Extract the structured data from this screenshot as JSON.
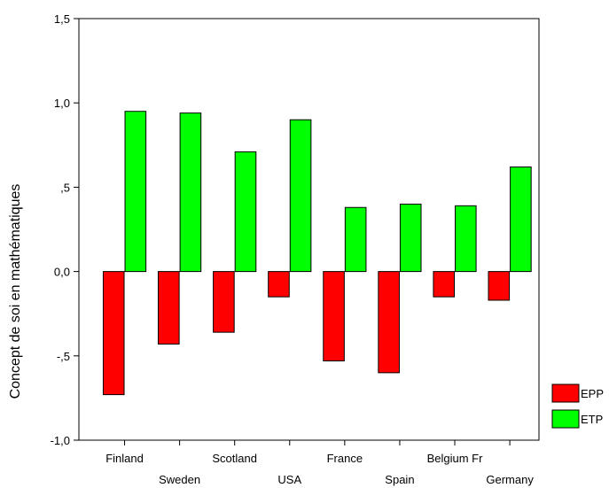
{
  "chart_data": {
    "type": "bar",
    "title": "",
    "xlabel": "",
    "ylabel": "Concept de soi en mathématiques",
    "ylim": [
      -1.0,
      1.5
    ],
    "yticks": [
      -1.0,
      -0.5,
      0.0,
      0.5,
      1.0,
      1.5
    ],
    "ytick_labels": [
      "-1,0",
      "-,5",
      "0,0",
      ",5",
      "1,0",
      "1,5"
    ],
    "grid": false,
    "legend_position": "right",
    "categories": [
      "Finland",
      "Sweden",
      "Scotland",
      "USA",
      "France",
      "Spain",
      "Belgium Fr",
      "Germany"
    ],
    "series": [
      {
        "name": "EPP",
        "color": "#ff0000",
        "values": [
          -0.73,
          -0.43,
          -0.36,
          -0.15,
          -0.53,
          -0.6,
          -0.15,
          -0.17
        ]
      },
      {
        "name": "ETP",
        "color": "#00ff00",
        "values": [
          0.95,
          0.94,
          0.71,
          0.9,
          0.38,
          0.4,
          0.39,
          0.62
        ]
      }
    ]
  }
}
